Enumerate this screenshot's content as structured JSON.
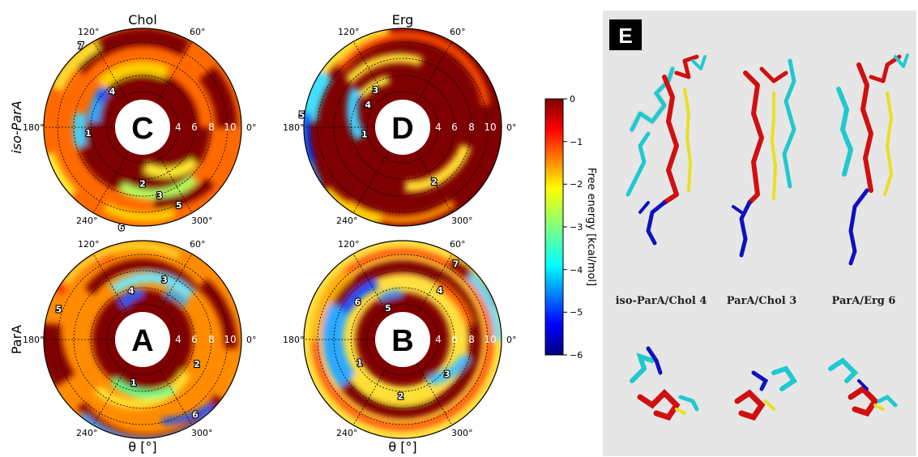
{
  "column_titles": [
    "Chol",
    "Erg"
  ],
  "row_labels": [
    "iso-ParA",
    "ParA"
  ],
  "theta_axis_label": "θ [°]",
  "angle_ticks": [
    "0°",
    "60°",
    "120°",
    "180°",
    "240°",
    "300°"
  ],
  "radial_ticks": [
    "4",
    "6",
    "8",
    "10"
  ],
  "colorbar": {
    "label": "Free energy [kcal/mol]",
    "ticks": [
      "0",
      "−1",
      "−2",
      "−3",
      "−4",
      "−5",
      "−6"
    ],
    "range": [
      -6,
      0
    ],
    "colormap": "jet"
  },
  "panels": [
    {
      "letter": "C",
      "row": "iso-ParA",
      "column": "Chol",
      "markers": [
        {
          "label": "1",
          "theta": 186,
          "r": 6.6
        },
        {
          "label": "2",
          "theta": 270,
          "r": 6.8
        },
        {
          "label": "3",
          "theta": 284,
          "r": 8.5
        },
        {
          "label": "4",
          "theta": 130,
          "r": 5.7
        },
        {
          "label": "5",
          "theta": 295,
          "r": 10.4
        },
        {
          "label": "6",
          "theta": 258,
          "r": 12.4
        },
        {
          "label": "7",
          "theta": 127,
          "r": 12.4
        }
      ]
    },
    {
      "letter": "D",
      "row": "iso-ParA",
      "column": "Erg",
      "markers": [
        {
          "label": "1",
          "theta": 190,
          "r": 4.7
        },
        {
          "label": "2",
          "theta": 300,
          "r": 7.6
        },
        {
          "label": "3",
          "theta": 126,
          "r": 5.6
        },
        {
          "label": "4",
          "theta": 147,
          "r": 5.0
        },
        {
          "label": "5",
          "theta": 173,
          "r": 12.3
        }
      ]
    },
    {
      "letter": "A",
      "row": "ParA",
      "column": "Chol",
      "markers": [
        {
          "label": "1",
          "theta": 258,
          "r": 5.3
        },
        {
          "label": "2",
          "theta": 336,
          "r": 7.2
        },
        {
          "label": "3",
          "theta": 70,
          "r": 7.7
        },
        {
          "label": "4",
          "theta": 103,
          "r": 6.1
        },
        {
          "label": "5",
          "theta": 160,
          "r": 10.8
        },
        {
          "label": "6",
          "theta": 305,
          "r": 11.1
        }
      ]
    },
    {
      "letter": "B",
      "row": "ParA",
      "column": "Erg",
      "markers": [
        {
          "label": "1",
          "theta": 208,
          "r": 5.9
        },
        {
          "label": "2",
          "theta": 268,
          "r": 6.8
        },
        {
          "label": "3",
          "theta": 322,
          "r": 6.8
        },
        {
          "label": "4",
          "theta": 53,
          "r": 7.5
        },
        {
          "label": "5",
          "theta": 115,
          "r": 4.2
        },
        {
          "label": "6",
          "theta": 140,
          "r": 7.1
        },
        {
          "label": "7",
          "theta": 55,
          "r": 11.2
        }
      ]
    }
  ],
  "panel_e": {
    "letter": "E",
    "complex_labels": [
      "iso-ParA/Chol 4",
      "ParA/Chol 3",
      "ParA/Erg 6"
    ]
  }
}
